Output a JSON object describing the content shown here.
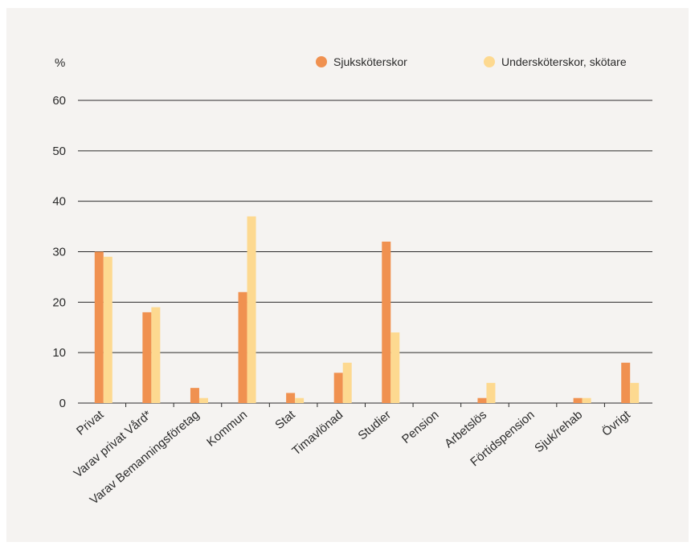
{
  "chart_data": {
    "type": "bar",
    "unit_label": "%",
    "ylim": [
      0,
      60
    ],
    "yticks": [
      0,
      10,
      20,
      30,
      40,
      50,
      60
    ],
    "grid": true,
    "legend_position": "top-right",
    "categories": [
      "Privat",
      "Varav privat Vård*",
      "Varav Bemanningsföretag",
      "Kommun",
      "Stat",
      "Timavlönad",
      "Studier",
      "Pension",
      "Arbetslös",
      "Förtidspension",
      "Sjuk/rehab",
      "Övrigt"
    ],
    "series": [
      {
        "name": "Sjuksköterskor",
        "color": "#f09150",
        "values": [
          30,
          18,
          3,
          22,
          2,
          6,
          32,
          0,
          1,
          0,
          1,
          8
        ]
      },
      {
        "name": "Undersköterskor, skötare",
        "color": "#fdd990",
        "values": [
          29,
          19,
          1,
          37,
          1,
          8,
          14,
          0,
          4,
          0,
          1,
          4
        ]
      }
    ]
  }
}
